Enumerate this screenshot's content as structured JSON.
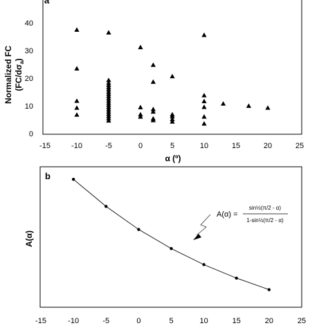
{
  "chart_data": [
    {
      "type": "scatter",
      "panel_label": "a",
      "xlabel": "α (º)",
      "ylabel_line1": "Normalized FC",
      "ylabel_line2": "(FC/dσ",
      "ylabel_sub": "a",
      "ylabel_close": ")",
      "xlim": [
        -15,
        25
      ],
      "ylim": [
        0,
        40
      ],
      "x_ticks": [
        "-15",
        "-10",
        "-5",
        "0",
        "5",
        "10",
        "15",
        "20",
        "25"
      ],
      "y_ticks": [
        "0",
        "10",
        "20",
        "30",
        "40"
      ],
      "marker": "triangle",
      "series": [
        {
          "points": [
            [
              -10,
              37.5
            ],
            [
              -10,
              23.5
            ],
            [
              -10,
              11.8
            ],
            [
              -10,
              9.3
            ],
            [
              -10,
              6.8
            ],
            [
              -5,
              36.5
            ],
            [
              -5,
              19.3
            ],
            [
              -5,
              18.3
            ],
            [
              -5,
              17.5
            ],
            [
              -5,
              16.7
            ],
            [
              -5,
              15.9
            ],
            [
              -5,
              15.1
            ],
            [
              -5,
              14.3
            ],
            [
              -5,
              13.5
            ],
            [
              -5,
              12.7
            ],
            [
              -5,
              11.9
            ],
            [
              -5,
              11.1
            ],
            [
              -5,
              10.3
            ],
            [
              -5,
              9.5
            ],
            [
              -5,
              8.7
            ],
            [
              -5,
              7.9
            ],
            [
              -5,
              7.1
            ],
            [
              -5,
              6.3
            ],
            [
              -5,
              5.5
            ],
            [
              -5,
              4.7
            ],
            [
              0,
              31.2
            ],
            [
              0,
              9.5
            ],
            [
              0,
              6.9
            ],
            [
              0,
              6.1
            ],
            [
              2,
              24.8
            ],
            [
              2,
              18.7
            ],
            [
              2,
              8.8
            ],
            [
              2,
              7.9
            ],
            [
              2,
              5.4
            ],
            [
              2,
              4.8
            ],
            [
              5,
              20.7
            ],
            [
              5,
              6.9
            ],
            [
              5,
              6.2
            ],
            [
              5,
              5.2
            ],
            [
              5,
              4.3
            ],
            [
              10,
              35.6
            ],
            [
              10,
              13.8
            ],
            [
              10,
              11.7
            ],
            [
              10,
              9.6
            ],
            [
              10,
              6.1
            ],
            [
              10,
              3.6
            ],
            [
              13,
              10.8
            ],
            [
              17,
              10.0
            ],
            [
              20,
              9.3
            ]
          ]
        }
      ]
    },
    {
      "type": "line",
      "panel_label": "b",
      "ylabel": "A(α)",
      "xlim": [
        -15,
        25
      ],
      "x_ticks": [
        "-15",
        "-10",
        "-5",
        "0",
        "5",
        "10",
        "15",
        "20",
        "25"
      ],
      "x": [
        -10,
        -5,
        0,
        5,
        10,
        15,
        20
      ],
      "values": [
        3.0,
        2.46,
        2.0,
        1.62,
        1.3,
        1.03,
        0.8
      ],
      "ylim": [
        0.45,
        3.25
      ],
      "annotation": {
        "lhs": "A(α) =",
        "numerator": "sin½(π/2 - α)",
        "denominator": "1-sin½(π/2 - α)"
      }
    }
  ]
}
